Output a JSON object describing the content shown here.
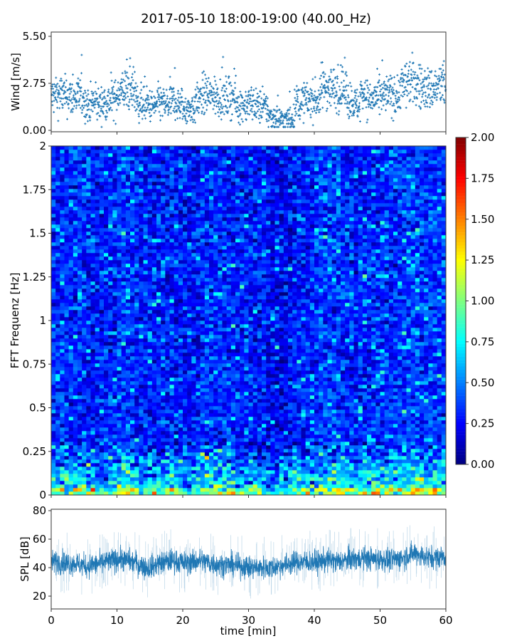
{
  "chart_data": [
    {
      "type": "scatter",
      "title": "2017-05-10 18:00-19:00 (40.00_Hz)",
      "ylabel": "Wind [m/s]",
      "xlim": [
        0,
        60
      ],
      "ylim": [
        0,
        5.5
      ],
      "yticks": [
        "0.00",
        "2.75",
        "5.50"
      ],
      "marker": "+",
      "color": "#1f77b4",
      "minute_mean_wind": [
        2.0,
        2.1,
        2.0,
        1.9,
        2.0,
        1.5,
        1.6,
        1.5,
        1.7,
        1.8,
        2.3,
        2.4,
        2.3,
        1.6,
        1.5,
        1.4,
        1.6,
        1.5,
        1.7,
        1.5,
        1.2,
        1.3,
        1.8,
        2.1,
        2.0,
        2.0,
        1.9,
        2.0,
        1.5,
        1.5,
        1.6,
        1.4,
        1.3,
        0.8,
        0.7,
        0.6,
        0.7,
        1.6,
        1.7,
        1.8,
        1.8,
        2.6,
        2.5,
        2.4,
        2.4,
        1.8,
        1.5,
        2.2,
        1.8,
        1.9,
        2.0,
        2.1,
        2.0,
        2.6,
        2.9,
        2.7,
        2.5,
        2.4,
        2.5,
        2.6
      ]
    },
    {
      "type": "heatmap",
      "ylabel": "FFT Frequenz [Hz]",
      "xlim": [
        0,
        60
      ],
      "ylim": [
        0,
        2
      ],
      "yticks": [
        "0",
        "0.25",
        "0.5",
        "0.75",
        "1",
        "1.25",
        "1.5",
        "1.75",
        "2"
      ],
      "colormap": "jet",
      "clim": [
        0,
        2
      ],
      "colorbar_ticks": [
        "0.00",
        "0.25",
        "0.50",
        "0.75",
        "1.00",
        "1.25",
        "1.50",
        "1.75",
        "2.00"
      ]
    },
    {
      "type": "line",
      "ylabel": "SPL [dB]",
      "xlabel": "time [min]",
      "xlim": [
        0,
        60
      ],
      "ylim": [
        11,
        81
      ],
      "xticks": [
        "0",
        "10",
        "20",
        "30",
        "40",
        "50",
        "60"
      ],
      "yticks": [
        "20",
        "40",
        "60",
        "80"
      ],
      "color": "#1f77b4",
      "minute_mean_spl": [
        44,
        44,
        43,
        43,
        42,
        41,
        42,
        43,
        44,
        45,
        46,
        45,
        44,
        42,
        40,
        41,
        43,
        44,
        45,
        44,
        43,
        44,
        45,
        44,
        43,
        42,
        42,
        42,
        41,
        41,
        40,
        40,
        40,
        40,
        41,
        42,
        43,
        44,
        44,
        44,
        44,
        45,
        45,
        44,
        45,
        46,
        46,
        47,
        46,
        46,
        46,
        45,
        46,
        47,
        49,
        50,
        48,
        47,
        47,
        48
      ]
    }
  ]
}
